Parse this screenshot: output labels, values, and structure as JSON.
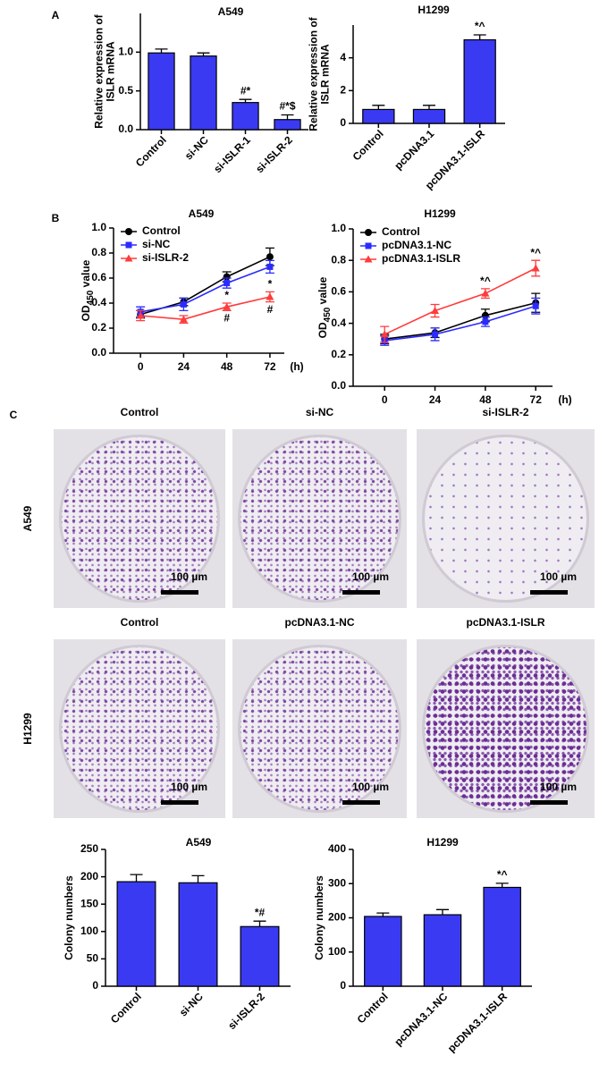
{
  "panel_labels": [
    "A",
    "B",
    "C"
  ],
  "colony_images": {
    "rows": [
      {
        "label": "A549",
        "columns": [
          "Control",
          "si-NC",
          "si-ISLR-2"
        ]
      },
      {
        "label": "H1299",
        "columns": [
          "Control",
          "pcDNA3.1-NC",
          "pcDNA3.1-ISLR"
        ]
      }
    ],
    "scale_bar": "100 µm"
  },
  "chart_data": [
    {
      "type": "bar",
      "title": "A549",
      "ylabel": [
        "Relative expression of",
        "ISLR mRNA"
      ],
      "categories": [
        "Control",
        "si-NC",
        "si-ISLR-1",
        "si-ISLR-2"
      ],
      "values": [
        0.99,
        0.95,
        0.35,
        0.13
      ],
      "errors": [
        0.05,
        0.04,
        0.04,
        0.06
      ],
      "annotations": [
        null,
        null,
        "#*",
        "#*$"
      ],
      "color": "#3a3af2",
      "ylim": [
        0,
        1.5
      ],
      "yticks": [
        {
          "value": 0,
          "label": "0.0"
        },
        {
          "value": 0.5,
          "label": "0.5"
        },
        {
          "value": 1,
          "label": "1.0"
        }
      ]
    },
    {
      "type": "bar",
      "title": "H1299",
      "ylabel": [
        "Relative expression of",
        "ISLR mRNA"
      ],
      "categories": [
        "Control",
        "pcDNA3.1",
        "pcDNA3.1-ISLR"
      ],
      "values": [
        0.85,
        0.85,
        5.1
      ],
      "errors": [
        0.25,
        0.25,
        0.3
      ],
      "annotations": [
        null,
        null,
        "*^"
      ],
      "color": "#3a3af2",
      "ylim": [
        0,
        6
      ],
      "yticks": [
        0,
        2,
        4
      ]
    },
    {
      "type": "line",
      "title": "A549",
      "ylabel_parts": [
        "OD",
        "450",
        " value"
      ],
      "xlabel": "(h)",
      "x": [
        0,
        24,
        48,
        72
      ],
      "xlim": [
        -15,
        80
      ],
      "xticks": [
        0,
        24,
        48,
        72
      ],
      "ylim": [
        0,
        1
      ],
      "yticks": [
        {
          "value": 0,
          "label": "0.0"
        },
        {
          "value": 0.2,
          "label": "0.2"
        },
        {
          "value": 0.4,
          "label": "0.4"
        },
        {
          "value": 0.6,
          "label": "0.6"
        },
        {
          "value": 0.8,
          "label": "0.8"
        },
        {
          "value": 1,
          "label": "1.0"
        }
      ],
      "legend": "upper left",
      "series": [
        {
          "name": "Control",
          "color": "#000000",
          "marker": "circle",
          "values": [
            0.31,
            0.41,
            0.61,
            0.77
          ],
          "errors": [
            0.03,
            0.03,
            0.04,
            0.07
          ]
        },
        {
          "name": "si-NC",
          "color": "#2b2bff",
          "marker": "square",
          "values": [
            0.33,
            0.39,
            0.56,
            0.69
          ],
          "errors": [
            0.04,
            0.05,
            0.04,
            0.05
          ]
        },
        {
          "name": "si-ISLR-2",
          "color": "#ff3b3b",
          "marker": "triangle",
          "values": [
            0.3,
            0.27,
            0.37,
            0.45
          ],
          "errors": [
            0.04,
            0.03,
            0.03,
            0.04
          ],
          "annotations_above": [
            null,
            null,
            "*",
            "*"
          ],
          "annotations_below": [
            null,
            null,
            "#",
            "#"
          ]
        }
      ]
    },
    {
      "type": "line",
      "title": "H1299",
      "ylabel_parts": [
        "OD",
        "450",
        " value"
      ],
      "xlabel": "(h)",
      "x": [
        0,
        24,
        48,
        72
      ],
      "xlim": [
        -15,
        80
      ],
      "xticks": [
        0,
        24,
        48,
        72
      ],
      "ylim": [
        0,
        1
      ],
      "yticks": [
        {
          "value": 0,
          "label": "0.0"
        },
        {
          "value": 0.2,
          "label": "0.2"
        },
        {
          "value": 0.4,
          "label": "0.4"
        },
        {
          "value": 0.6,
          "label": "0.6"
        },
        {
          "value": 0.8,
          "label": "0.8"
        },
        {
          "value": 1,
          "label": "1.0"
        }
      ],
      "legend": "upper left",
      "series": [
        {
          "name": "Control",
          "color": "#000000",
          "marker": "circle",
          "values": [
            0.3,
            0.34,
            0.45,
            0.53
          ],
          "errors": [
            0.03,
            0.03,
            0.04,
            0.06
          ]
        },
        {
          "name": "pcDNA3.1-NC",
          "color": "#2b2bff",
          "marker": "square",
          "values": [
            0.29,
            0.33,
            0.41,
            0.51
          ],
          "errors": [
            0.03,
            0.04,
            0.03,
            0.05
          ]
        },
        {
          "name": "pcDNA3.1-ISLR",
          "color": "#ff3b3b",
          "marker": "triangle",
          "values": [
            0.33,
            0.48,
            0.59,
            0.75
          ],
          "errors": [
            0.05,
            0.04,
            0.03,
            0.05
          ],
          "annotations_above": [
            null,
            null,
            "*^",
            "*^"
          ]
        }
      ]
    },
    {
      "type": "bar",
      "title": "A549",
      "ylabel": [
        "Colony numbers"
      ],
      "categories": [
        "Control",
        "si-NC",
        "si-ISLR-2"
      ],
      "values": [
        191,
        189,
        109
      ],
      "errors": [
        13,
        13,
        10
      ],
      "annotations": [
        null,
        null,
        "*#"
      ],
      "color": "#3a3af2",
      "ylim": [
        0,
        250
      ],
      "yticks": [
        0,
        50,
        100,
        150,
        200,
        250
      ]
    },
    {
      "type": "bar",
      "title": "H1299",
      "ylabel": [
        "Colony numbers"
      ],
      "categories": [
        "Control",
        "pcDNA3.1-NC",
        "pcDNA3.1-ISLR"
      ],
      "values": [
        204,
        209,
        289
      ],
      "errors": [
        10,
        15,
        12
      ],
      "annotations": [
        null,
        null,
        "*^"
      ],
      "color": "#3a3af2",
      "ylim": [
        0,
        400
      ],
      "yticks": [
        0,
        100,
        200,
        300,
        400
      ]
    }
  ]
}
